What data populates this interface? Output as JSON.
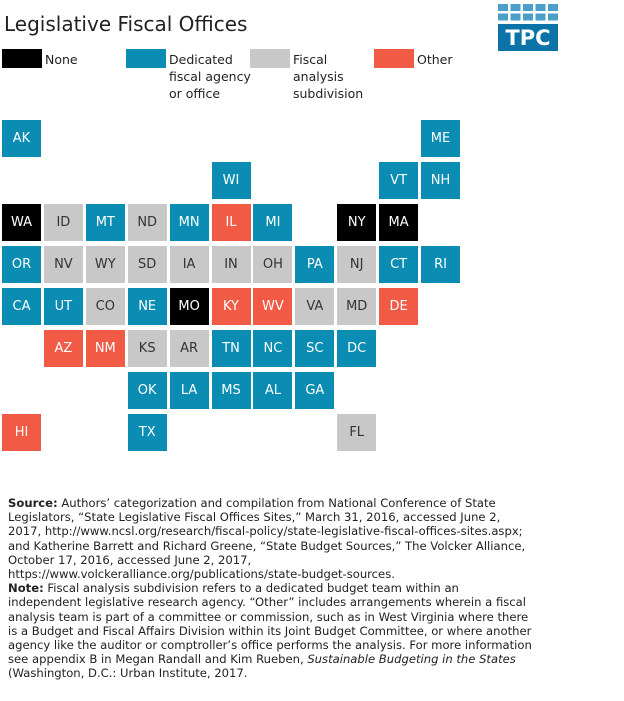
{
  "title": "Legislative Fiscal Offices",
  "logo": "TPC",
  "legend": [
    {
      "lines": [
        "None"
      ],
      "color": "#000000",
      "text_color": "#ffffff"
    },
    {
      "lines": [
        "Dedicated",
        "fiscal agency",
        "or office"
      ],
      "color": "#0b8db3",
      "text_color": "#ffffff"
    },
    {
      "lines": [
        "Fiscal",
        "analysis",
        "subdivision"
      ],
      "color": "#c8c8c8",
      "text_color": "#333333"
    },
    {
      "lines": [
        "Other"
      ],
      "color": "#f15a45",
      "text_color": "#ffffff"
    }
  ],
  "tiles": [
    {
      "label": "AK",
      "category": 1
    },
    {
      "label": "ME",
      "category": 1
    },
    {
      "label": "WI",
      "category": 1
    },
    {
      "label": "VT",
      "category": 1
    },
    {
      "label": "NH",
      "category": 1
    },
    {
      "label": "WA",
      "category": 0
    },
    {
      "label": "ID",
      "category": 2
    },
    {
      "label": "MT",
      "category": 1
    },
    {
      "label": "ND",
      "category": 2
    },
    {
      "label": "MN",
      "category": 1
    },
    {
      "label": "IL",
      "category": 3
    },
    {
      "label": "MI",
      "category": 1
    },
    {
      "label": "NY",
      "category": 0
    },
    {
      "label": "MA",
      "category": 0
    },
    {
      "label": "OR",
      "category": 1
    },
    {
      "label": "NV",
      "category": 2
    },
    {
      "label": "WY",
      "category": 2
    },
    {
      "label": "SD",
      "category": 2
    },
    {
      "label": "IA",
      "category": 2
    },
    {
      "label": "IN",
      "category": 2
    },
    {
      "label": "OH",
      "category": 2
    },
    {
      "label": "PA",
      "category": 1
    },
    {
      "label": "NJ",
      "category": 2
    },
    {
      "label": "CT",
      "category": 1
    },
    {
      "label": "RI",
      "category": 1
    },
    {
      "label": "CA",
      "category": 1
    },
    {
      "label": "UT",
      "category": 1
    },
    {
      "label": "CO",
      "category": 2
    },
    {
      "label": "NE",
      "category": 1
    },
    {
      "label": "MO",
      "category": 0
    },
    {
      "label": "KY",
      "category": 3
    },
    {
      "label": "WV",
      "category": 3
    },
    {
      "label": "VA",
      "category": 2
    },
    {
      "label": "MD",
      "category": 2
    },
    {
      "label": "DE",
      "category": 3
    },
    {
      "label": "AZ",
      "category": 3
    },
    {
      "label": "NM",
      "category": 3
    },
    {
      "label": "KS",
      "category": 2
    },
    {
      "label": "AR",
      "category": 2
    },
    {
      "label": "TN",
      "category": 1
    },
    {
      "label": "NC",
      "category": 1
    },
    {
      "label": "SC",
      "category": 1
    },
    {
      "label": "DC",
      "category": 1
    },
    {
      "label": "OK",
      "category": 1
    },
    {
      "label": "LA",
      "category": 1
    },
    {
      "label": "MS",
      "category": 1
    },
    {
      "label": "AL",
      "category": 1
    },
    {
      "label": "GA",
      "category": 1
    },
    {
      "label": "HI",
      "category": 3
    },
    {
      "label": "TX",
      "category": 1
    },
    {
      "label": "FL",
      "category": 2
    }
  ],
  "source": {
    "label": "Source:",
    "text": " Authors’ categorization and compilation from National Conference of State Legislators, “State Legislative Fiscal Offices Sites,” March 31, 2016, accessed June 2, 2017, http://www.ncsl.org/research/fiscal-policy/state-legislative-fiscal-offices-sites.aspx; and Katherine Barrett and Richard Greene, “State Budget Sources,” The Volcker Alliance, October 17, 2016, accessed June 2, 2017, https://www.volckeralliance.org/publications/state-budget-sources."
  },
  "note": {
    "label": "Note:",
    "text_1": " Fiscal analysis subdivision refers to a dedicated budget team within an independent legislative research agency. “Other” includes arrangements wherein a fiscal analysis team is part of a committee or commission, such as in West Virginia where there is a Budget and Fiscal Affairs Division within its Joint Budget Committee, or where another agency like the auditor or comptroller’s office performs the analysis. For more information see appendix B in Megan Randall and Kim Rueben, ",
    "italic": "Sustainable Budgeting in the States",
    "text_2": " (Washington, D.C.: Urban Institute, 2017."
  }
}
